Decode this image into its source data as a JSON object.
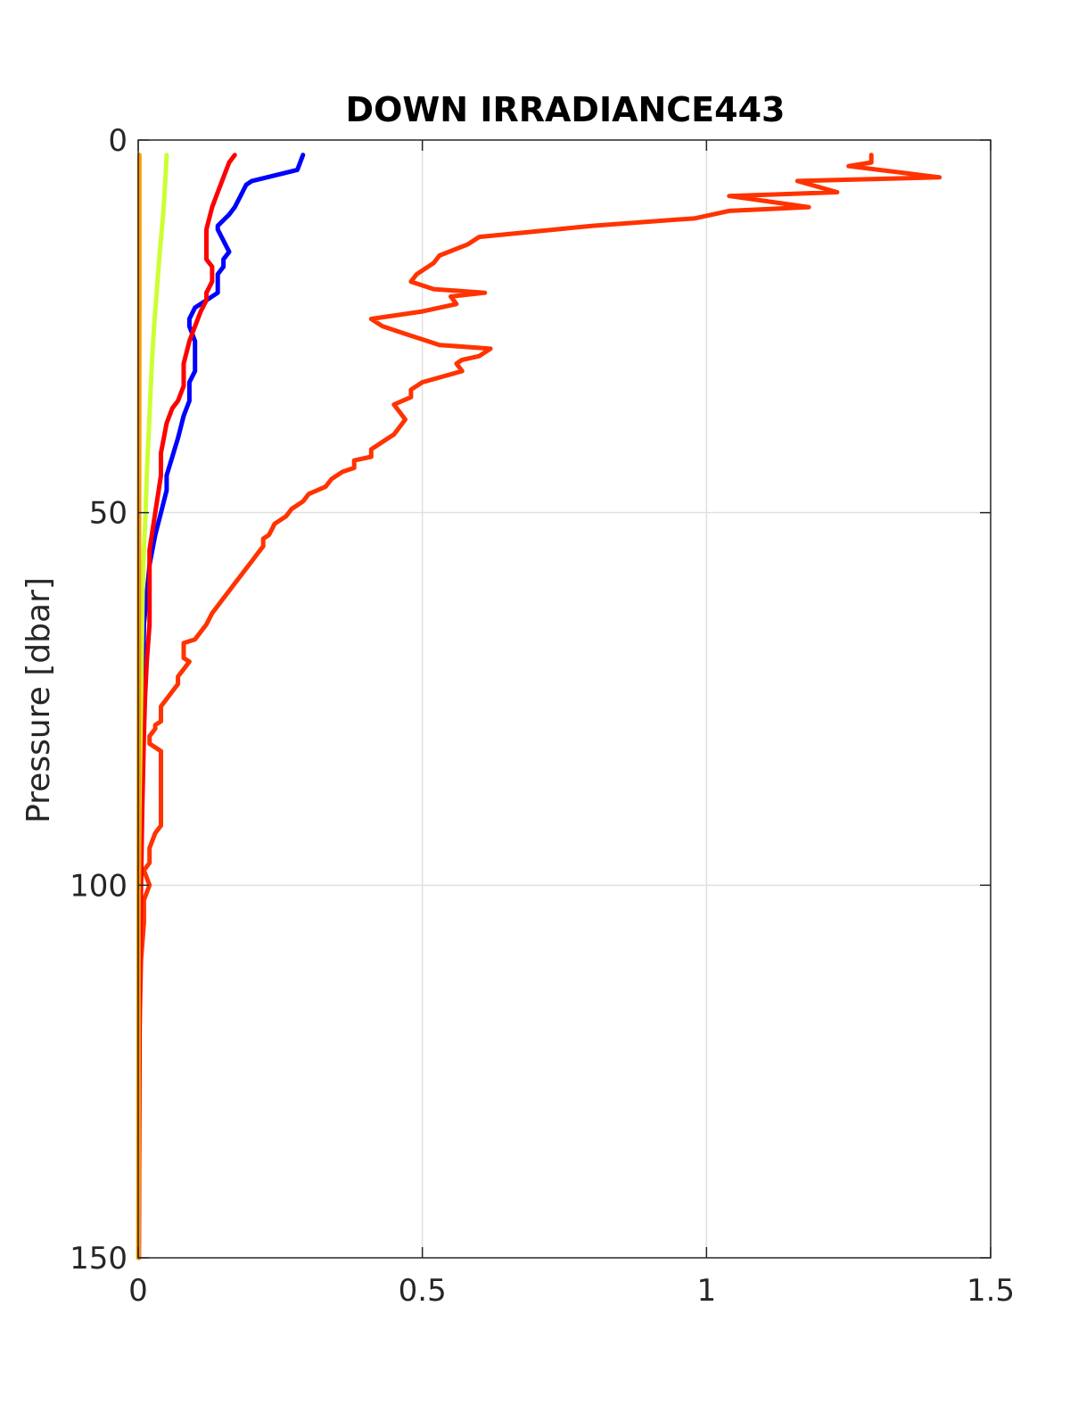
{
  "chart_data": {
    "type": "line",
    "title": "DOWN IRRADIANCE443",
    "xlabel": "",
    "ylabel": "Pressure [dbar]",
    "xlim": [
      0,
      1.5
    ],
    "ylim": [
      0,
      150
    ],
    "y_reversed": true,
    "grid": true,
    "legend": "none",
    "x_ticks": [
      "0",
      "0.5",
      "1",
      "1.5"
    ],
    "y_ticks": [
      "0",
      "50",
      "100",
      "150"
    ],
    "series": [
      {
        "color": "#ff3300",
        "points": [
          [
            1.29,
            2
          ],
          [
            1.29,
            3
          ],
          [
            1.25,
            3.5
          ],
          [
            1.41,
            5
          ],
          [
            1.16,
            5.5
          ],
          [
            1.23,
            7
          ],
          [
            1.04,
            7.5
          ],
          [
            1.18,
            9
          ],
          [
            1.04,
            9.5
          ],
          [
            0.98,
            10.5
          ],
          [
            0.8,
            11.5
          ],
          [
            0.6,
            13
          ],
          [
            0.58,
            14
          ],
          [
            0.53,
            15.5
          ],
          [
            0.52,
            16.5
          ],
          [
            0.49,
            18
          ],
          [
            0.48,
            19
          ],
          [
            0.52,
            20
          ],
          [
            0.61,
            20.5
          ],
          [
            0.55,
            21
          ],
          [
            0.56,
            22
          ],
          [
            0.5,
            23
          ],
          [
            0.41,
            24
          ],
          [
            0.43,
            25
          ],
          [
            0.47,
            26
          ],
          [
            0.53,
            27.5
          ],
          [
            0.62,
            28
          ],
          [
            0.6,
            29
          ],
          [
            0.57,
            29.5
          ],
          [
            0.56,
            30
          ],
          [
            0.57,
            31
          ],
          [
            0.5,
            32.5
          ],
          [
            0.48,
            33.5
          ],
          [
            0.48,
            34.5
          ],
          [
            0.45,
            35.5
          ],
          [
            0.46,
            36.5
          ],
          [
            0.47,
            37.5
          ],
          [
            0.46,
            38.5
          ],
          [
            0.45,
            39.5
          ],
          [
            0.44,
            40
          ],
          [
            0.42,
            41
          ],
          [
            0.41,
            41.5
          ],
          [
            0.41,
            42.5
          ],
          [
            0.38,
            43
          ],
          [
            0.38,
            44
          ],
          [
            0.36,
            44.5
          ],
          [
            0.34,
            45.5
          ],
          [
            0.33,
            46.5
          ],
          [
            0.3,
            47.5
          ],
          [
            0.29,
            48.5
          ],
          [
            0.27,
            49.5
          ],
          [
            0.26,
            50.5
          ],
          [
            0.24,
            51.5
          ],
          [
            0.23,
            53
          ],
          [
            0.22,
            53.5
          ],
          [
            0.22,
            54.5
          ],
          [
            0.21,
            55.5
          ],
          [
            0.2,
            56.5
          ],
          [
            0.19,
            57.5
          ],
          [
            0.18,
            58.5
          ],
          [
            0.17,
            59.5
          ],
          [
            0.16,
            60.5
          ],
          [
            0.15,
            61.5
          ],
          [
            0.14,
            62.5
          ],
          [
            0.13,
            63.5
          ],
          [
            0.12,
            65
          ],
          [
            0.11,
            66
          ],
          [
            0.1,
            67
          ],
          [
            0.08,
            67.5
          ],
          [
            0.08,
            68.5
          ],
          [
            0.08,
            69.5
          ],
          [
            0.09,
            70
          ],
          [
            0.08,
            71
          ],
          [
            0.07,
            72
          ],
          [
            0.07,
            73
          ],
          [
            0.06,
            74
          ],
          [
            0.05,
            75
          ],
          [
            0.04,
            76
          ],
          [
            0.04,
            77
          ],
          [
            0.04,
            78
          ],
          [
            0.03,
            78.5
          ],
          [
            0.03,
            79
          ],
          [
            0.02,
            80
          ],
          [
            0.02,
            81
          ],
          [
            0.04,
            82
          ],
          [
            0.04,
            92
          ],
          [
            0.03,
            93
          ],
          [
            0.02,
            95
          ],
          [
            0.02,
            97
          ],
          [
            0.01,
            98
          ],
          [
            0.02,
            100
          ],
          [
            0.01,
            102
          ],
          [
            0.01,
            105
          ],
          [
            0.005,
            110
          ],
          [
            0.002,
            120
          ],
          [
            0.001,
            130
          ],
          [
            0.001,
            150
          ]
        ]
      },
      {
        "color": "#0000ff",
        "points": [
          [
            0.29,
            2
          ],
          [
            0.28,
            4
          ],
          [
            0.2,
            5.5
          ],
          [
            0.19,
            6
          ],
          [
            0.18,
            7.5
          ],
          [
            0.17,
            9
          ],
          [
            0.16,
            10
          ],
          [
            0.14,
            11.5
          ],
          [
            0.14,
            12
          ],
          [
            0.15,
            13.5
          ],
          [
            0.16,
            15
          ],
          [
            0.15,
            16
          ],
          [
            0.15,
            17
          ],
          [
            0.14,
            18
          ],
          [
            0.14,
            19
          ],
          [
            0.14,
            20.5
          ],
          [
            0.12,
            21.5
          ],
          [
            0.1,
            22.5
          ],
          [
            0.09,
            24
          ],
          [
            0.09,
            25
          ],
          [
            0.1,
            27
          ],
          [
            0.1,
            29
          ],
          [
            0.1,
            31
          ],
          [
            0.09,
            32.5
          ],
          [
            0.09,
            34
          ],
          [
            0.09,
            35
          ],
          [
            0.08,
            37
          ],
          [
            0.07,
            40
          ],
          [
            0.05,
            45
          ],
          [
            0.05,
            47
          ],
          [
            0.04,
            50
          ],
          [
            0.03,
            53
          ],
          [
            0.02,
            57
          ],
          [
            0.01,
            65
          ],
          [
            0.008,
            75
          ],
          [
            0.004,
            90
          ],
          [
            0.002,
            110
          ],
          [
            0.001,
            150
          ]
        ]
      },
      {
        "color": "#ff0000",
        "points": [
          [
            0.17,
            2
          ],
          [
            0.16,
            3
          ],
          [
            0.15,
            5
          ],
          [
            0.14,
            7
          ],
          [
            0.13,
            9
          ],
          [
            0.12,
            12
          ],
          [
            0.12,
            14
          ],
          [
            0.12,
            16
          ],
          [
            0.13,
            17
          ],
          [
            0.13,
            18
          ],
          [
            0.13,
            19
          ],
          [
            0.12,
            20.5
          ],
          [
            0.12,
            21.5
          ],
          [
            0.11,
            23
          ],
          [
            0.1,
            25
          ],
          [
            0.09,
            27
          ],
          [
            0.08,
            30
          ],
          [
            0.08,
            33
          ],
          [
            0.07,
            35
          ],
          [
            0.06,
            36
          ],
          [
            0.05,
            38
          ],
          [
            0.04,
            42
          ],
          [
            0.04,
            45
          ],
          [
            0.03,
            50
          ],
          [
            0.02,
            55
          ],
          [
            0.02,
            60
          ],
          [
            0.02,
            65
          ],
          [
            0.015,
            70
          ],
          [
            0.012,
            75
          ],
          [
            0.01,
            80
          ],
          [
            0.007,
            90
          ],
          [
            0.005,
            100
          ],
          [
            0.003,
            110
          ],
          [
            0.002,
            130
          ],
          [
            0.001,
            150
          ]
        ]
      },
      {
        "color": "#ccff33",
        "points": [
          [
            0.05,
            2
          ],
          [
            0.048,
            5
          ],
          [
            0.044,
            10
          ],
          [
            0.038,
            15
          ],
          [
            0.033,
            20
          ],
          [
            0.028,
            25
          ],
          [
            0.024,
            30
          ],
          [
            0.021,
            35
          ],
          [
            0.018,
            40
          ],
          [
            0.015,
            45
          ],
          [
            0.013,
            50
          ],
          [
            0.01,
            55
          ],
          [
            0.008,
            60
          ],
          [
            0.006,
            70
          ],
          [
            0.004,
            80
          ],
          [
            0.002,
            90
          ],
          [
            0.001,
            100
          ],
          [
            0.0005,
            120
          ],
          [
            0.0002,
            150
          ]
        ]
      },
      {
        "color": "#ff9900",
        "points": [
          [
            0.002,
            2
          ],
          [
            0.002,
            20
          ],
          [
            0.0015,
            50
          ],
          [
            0.001,
            100
          ],
          [
            0.0005,
            150
          ]
        ]
      }
    ]
  }
}
